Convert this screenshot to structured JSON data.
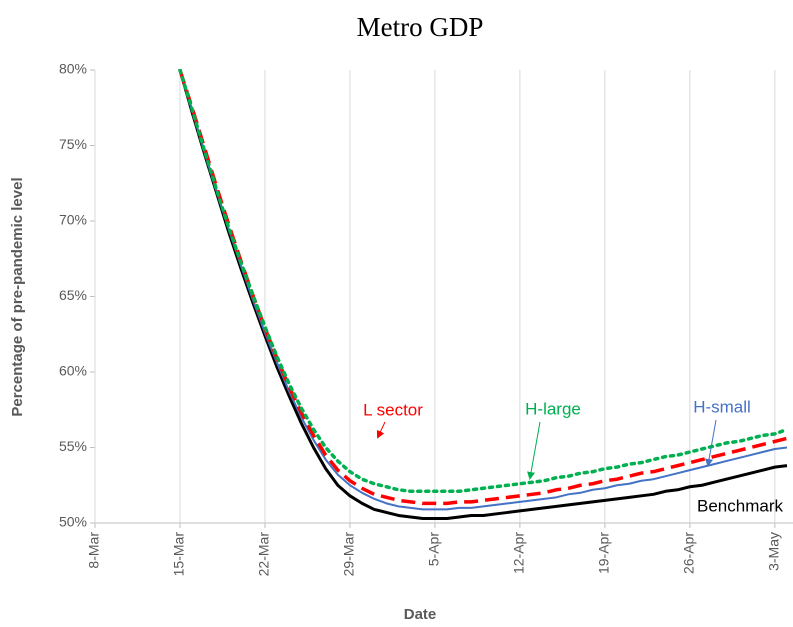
{
  "chart_data": {
    "type": "line",
    "title": "Metro GDP",
    "x_label": "Date",
    "y_label": "Percentage of pre-pandemic level",
    "categories": [
      "8-Mar",
      null,
      null,
      null,
      null,
      null,
      null,
      "15-Mar",
      null,
      null,
      null,
      null,
      null,
      null,
      "22-Mar",
      null,
      null,
      null,
      null,
      null,
      null,
      "29-Mar",
      null,
      null,
      null,
      null,
      null,
      null,
      "5-Apr",
      null,
      null,
      null,
      null,
      null,
      null,
      "12-Apr",
      null,
      null,
      null,
      null,
      null,
      null,
      "19-Apr",
      null,
      null,
      null,
      null,
      null,
      null,
      "26-Apr",
      null,
      null,
      null,
      null,
      null,
      null,
      "3-May",
      null
    ],
    "series": [
      {
        "name": "Benchmark",
        "color": "#000000",
        "dash": "solid",
        "width": 3,
        "values": [
          null,
          null,
          null,
          null,
          null,
          null,
          null,
          80,
          77.2,
          74.5,
          71.9,
          69.3,
          66.9,
          64.6,
          62.4,
          60.3,
          58.4,
          56.6,
          55.0,
          53.6,
          52.5,
          51.8,
          51.3,
          50.9,
          50.7,
          50.5,
          50.4,
          50.3,
          50.3,
          50.3,
          50.4,
          50.5,
          50.5,
          50.6,
          50.7,
          50.8,
          50.9,
          51.0,
          51.1,
          51.2,
          51.3,
          51.4,
          51.5,
          51.6,
          51.7,
          51.8,
          51.9,
          52.1,
          52.2,
          52.4,
          52.5,
          52.7,
          52.9,
          53.1,
          53.3,
          53.5,
          53.7,
          53.8
        ]
      },
      {
        "name": "H-small",
        "color": "#4472c4",
        "dash": "solid",
        "width": 2,
        "values": [
          null,
          null,
          null,
          null,
          null,
          null,
          null,
          80,
          77.3,
          74.6,
          72.0,
          69.5,
          67.1,
          64.8,
          62.6,
          60.6,
          58.7,
          57.0,
          55.5,
          54.2,
          53.2,
          52.5,
          52.0,
          51.6,
          51.3,
          51.1,
          51.0,
          50.9,
          50.9,
          50.9,
          51.0,
          51.0,
          51.1,
          51.2,
          51.3,
          51.4,
          51.5,
          51.6,
          51.7,
          51.9,
          52.0,
          52.2,
          52.3,
          52.5,
          52.6,
          52.8,
          52.9,
          53.1,
          53.3,
          53.5,
          53.7,
          53.9,
          54.1,
          54.3,
          54.5,
          54.7,
          54.9,
          55.0
        ]
      },
      {
        "name": "L sector",
        "color": "#ff0000",
        "dash": "dashed",
        "width": 3.5,
        "values": [
          null,
          null,
          null,
          null,
          null,
          null,
          null,
          80,
          77.5,
          74.9,
          72.3,
          69.8,
          67.4,
          65.1,
          62.9,
          60.9,
          59.0,
          57.3,
          55.8,
          54.5,
          53.5,
          52.8,
          52.3,
          51.9,
          51.7,
          51.5,
          51.4,
          51.3,
          51.3,
          51.3,
          51.4,
          51.4,
          51.5,
          51.6,
          51.7,
          51.8,
          51.9,
          52.0,
          52.2,
          52.3,
          52.5,
          52.6,
          52.8,
          52.9,
          53.1,
          53.3,
          53.4,
          53.6,
          53.8,
          54.0,
          54.2,
          54.4,
          54.6,
          54.8,
          55.0,
          55.2,
          55.4,
          55.6
        ]
      },
      {
        "name": "H-large",
        "color": "#00b050",
        "dash": "dotted",
        "width": 3.5,
        "values": [
          null,
          null,
          null,
          null,
          null,
          null,
          null,
          80,
          77.4,
          74.7,
          72.1,
          69.6,
          67.3,
          65.1,
          63.0,
          61.0,
          59.2,
          57.6,
          56.2,
          55.0,
          54.1,
          53.4,
          52.9,
          52.6,
          52.4,
          52.2,
          52.1,
          52.1,
          52.1,
          52.1,
          52.1,
          52.2,
          52.3,
          52.4,
          52.5,
          52.6,
          52.7,
          52.8,
          53.0,
          53.1,
          53.3,
          53.4,
          53.6,
          53.7,
          53.9,
          54.0,
          54.2,
          54.4,
          54.5,
          54.7,
          54.9,
          55.1,
          55.3,
          55.4,
          55.6,
          55.8,
          55.9,
          56.2
        ]
      }
    ],
    "annotations": [
      {
        "text": "L sector",
        "color": "#ff0000"
      },
      {
        "text": "H-large",
        "color": "#00b050"
      },
      {
        "text": "H-small",
        "color": "#4472c4"
      },
      {
        "text": "Benchmark",
        "color": "#000000"
      }
    ],
    "ylim": [
      50,
      80
    ],
    "yticks": [
      {
        "value": 50,
        "label": "50%"
      },
      {
        "value": 55,
        "label": "55%"
      },
      {
        "value": 60,
        "label": "60%"
      },
      {
        "value": 65,
        "label": "65%"
      },
      {
        "value": 70,
        "label": "70%"
      },
      {
        "value": 75,
        "label": "75%"
      },
      {
        "value": 80,
        "label": "80%"
      }
    ],
    "grid": "x"
  }
}
